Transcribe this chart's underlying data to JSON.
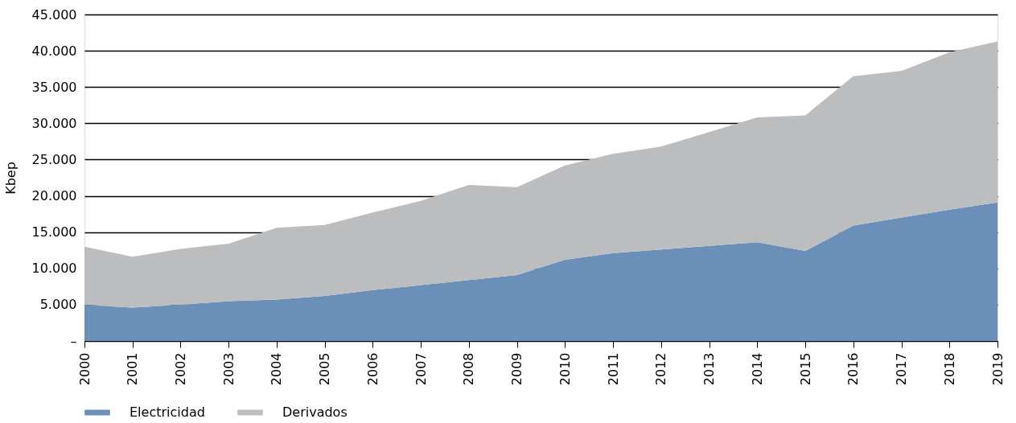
{
  "chart_data": {
    "type": "area",
    "stacked": true,
    "ylabel": "Kbep",
    "categories": [
      "2000",
      "2001",
      "2002",
      "2003",
      "2004",
      "2005",
      "2006",
      "2007",
      "2008",
      "2009",
      "2010",
      "2011",
      "2012",
      "2013",
      "2014",
      "2015",
      "2016",
      "2017",
      "2018",
      "2019"
    ],
    "series": [
      {
        "name": "Electricidad",
        "color": "#6a8fb8",
        "values": [
          5000,
          4600,
          5000,
          5500,
          5700,
          6200,
          7000,
          7700,
          8400,
          9100,
          11200,
          12100,
          12600,
          13100,
          13600,
          12400,
          15900,
          17000,
          18100,
          19100
        ]
      },
      {
        "name": "Derivados",
        "color": "#bcbdbf",
        "values": [
          8000,
          7000,
          7700,
          7900,
          9900,
          9800,
          10700,
          11600,
          13100,
          12100,
          13000,
          13700,
          14200,
          15700,
          17200,
          18700,
          20600,
          20200,
          21700,
          22200
        ]
      }
    ],
    "ylim": [
      0,
      45000
    ],
    "yticks": [
      {
        "value": 0,
        "label": "–"
      },
      {
        "value": 5000,
        "label": "5.000"
      },
      {
        "value": 10000,
        "label": "10.000"
      },
      {
        "value": 15000,
        "label": "15.000"
      },
      {
        "value": 20000,
        "label": "20.000"
      },
      {
        "value": 25000,
        "label": "25.000"
      },
      {
        "value": 30000,
        "label": "30.000"
      },
      {
        "value": 35000,
        "label": "35.000"
      },
      {
        "value": 40000,
        "label": "40.000"
      },
      {
        "value": 45000,
        "label": "45.000"
      }
    ],
    "grid": "y",
    "legend": "bottom"
  }
}
